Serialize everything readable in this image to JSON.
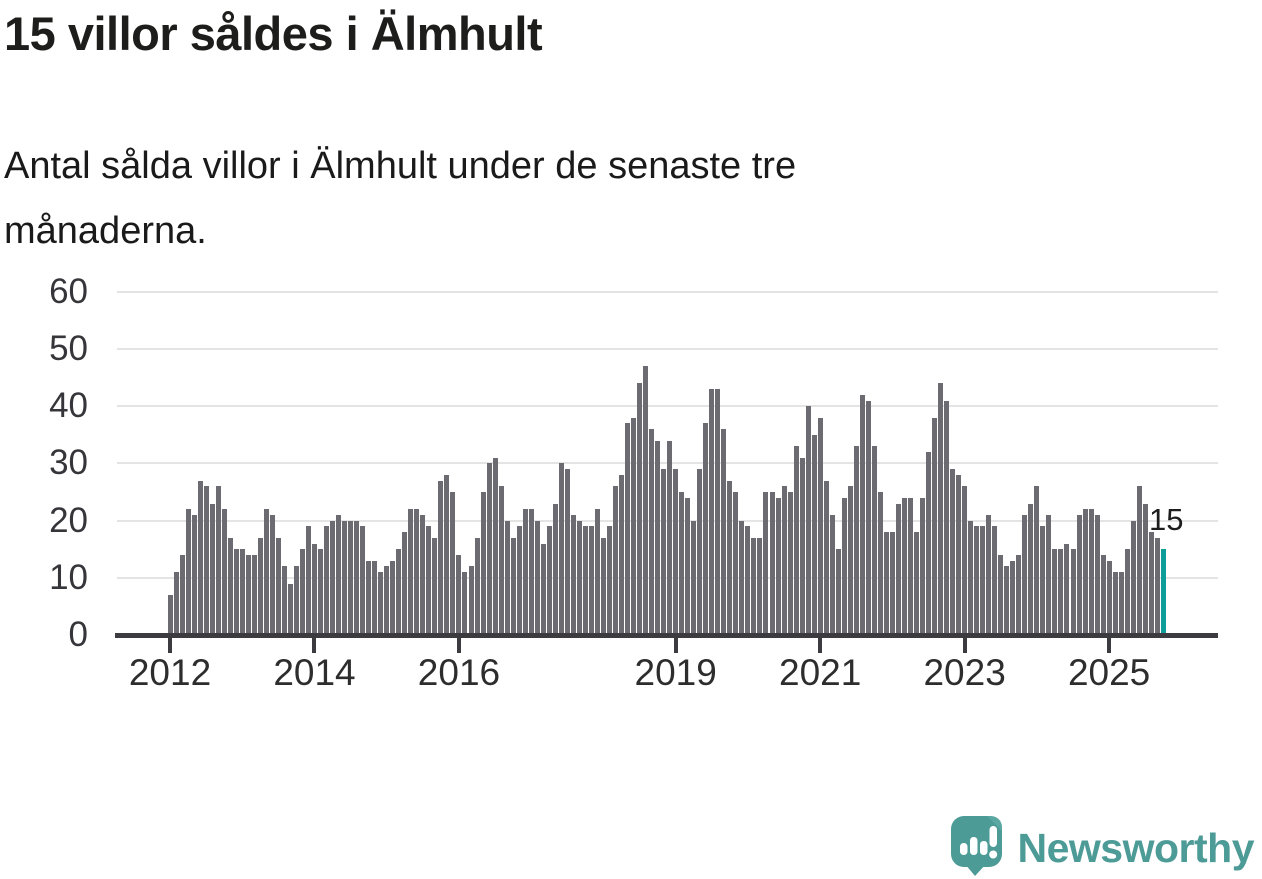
{
  "header": {
    "title": "15 villor såldes i Älmhult",
    "subtitle_line1": "Antal sålda villor i Älmhult under de senaste tre",
    "subtitle_line2": "månaderna."
  },
  "chart_data": {
    "type": "bar",
    "title": "15 villor såldes i Älmhult",
    "subtitle": "Antal sålda villor i Älmhult under de senaste tre månaderna.",
    "ylabel": "",
    "xlabel": "",
    "ylim": [
      0,
      60
    ],
    "grid": true,
    "y_ticks": [
      0,
      10,
      20,
      30,
      40,
      50,
      60
    ],
    "x_tick_labels": [
      "2012",
      "2014",
      "2016",
      "2019",
      "2021",
      "2023",
      "2025"
    ],
    "x_tick_indices": [
      0,
      24,
      48,
      84,
      108,
      132,
      156
    ],
    "period_start": "2012-01",
    "values": [
      7,
      11,
      14,
      22,
      21,
      27,
      26,
      23,
      26,
      22,
      17,
      15,
      15,
      14,
      14,
      17,
      22,
      21,
      17,
      12,
      9,
      12,
      15,
      19,
      16,
      15,
      19,
      20,
      21,
      20,
      20,
      20,
      19,
      13,
      13,
      11,
      12,
      13,
      15,
      18,
      22,
      22,
      21,
      19,
      17,
      27,
      28,
      25,
      14,
      11,
      12,
      17,
      25,
      30,
      31,
      26,
      20,
      17,
      19,
      22,
      22,
      20,
      16,
      19,
      23,
      30,
      29,
      21,
      20,
      19,
      19,
      22,
      17,
      19,
      26,
      28,
      37,
      38,
      44,
      47,
      36,
      34,
      29,
      34,
      29,
      25,
      24,
      20,
      29,
      37,
      43,
      43,
      36,
      27,
      25,
      20,
      19,
      17,
      17,
      25,
      25,
      24,
      26,
      25,
      33,
      31,
      40,
      35,
      38,
      27,
      21,
      15,
      24,
      26,
      33,
      42,
      41,
      33,
      25,
      18,
      18,
      23,
      24,
      24,
      18,
      24,
      32,
      38,
      44,
      41,
      29,
      28,
      26,
      20,
      19,
      19,
      21,
      19,
      14,
      12,
      13,
      14,
      21,
      23,
      26,
      19,
      21,
      15,
      15,
      16,
      15,
      21,
      22,
      22,
      21,
      14,
      13,
      11,
      11,
      15,
      20,
      26,
      23,
      18,
      17,
      15
    ],
    "highlight_index": 165,
    "highlight_value": 15,
    "annotation": {
      "text": "15"
    },
    "colors": {
      "bar": "#6b6b71",
      "highlight": "#0d9e99",
      "grid": "#e4e4e4",
      "axis": "#3b3b40",
      "tick_text": "#35353a"
    }
  },
  "footer": {
    "brand": "Newsworthy",
    "brand_color": "#4d9b97",
    "logo_icon": "newsworthy-speech-bubble-chart-icon"
  }
}
